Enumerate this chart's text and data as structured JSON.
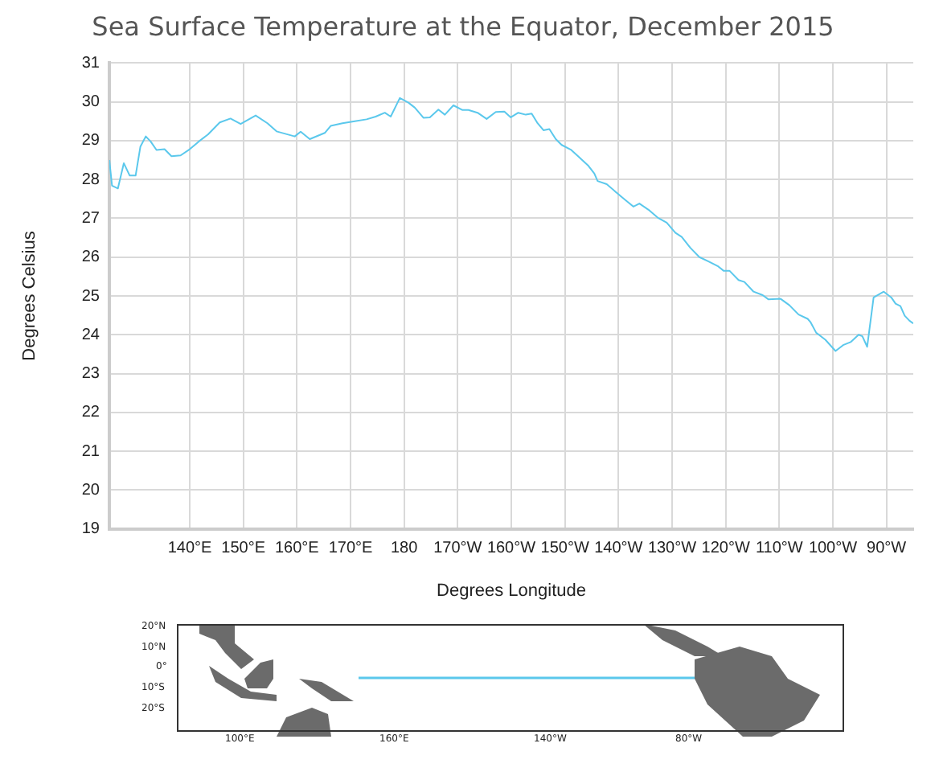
{
  "chart_data": {
    "type": "line",
    "title": "Sea Surface Temperature at the Equator, December 2015",
    "xlabel": "Degrees Longitude",
    "ylabel": "Degrees Celsius",
    "series": [
      {
        "color": "#5bc8ec",
        "x": [
          125,
          125.5,
          126.6,
          127.7,
          128.8,
          129.9,
          130.8,
          131.8,
          132.7,
          133.8,
          135.3,
          136.6,
          138.3,
          140,
          141.7,
          143.4,
          145.6,
          147.6,
          149.5,
          152.3,
          154.5,
          156.2,
          159.6,
          160.7,
          162.4,
          165.2,
          166.3,
          168.5,
          170.8,
          173,
          174.7,
          176.4,
          177.5,
          179.2,
          180.8,
          182,
          183.6,
          184.8,
          186.4,
          187.6,
          189.2,
          190.9,
          192,
          193.7,
          195.4,
          197.1,
          198.7,
          199.9,
          201.3,
          202.7,
          203.8,
          204.9,
          206,
          207.1,
          208.3,
          209.4,
          211.1,
          212.7,
          214.4,
          215.5,
          216.1,
          217.8,
          219.4,
          221.1,
          222.8,
          223.9,
          225.6,
          227.3,
          229,
          230.6,
          231.8,
          233.4,
          235.1,
          236.8,
          238.5,
          239.6,
          240.7,
          242.4,
          243.5,
          245.2,
          246.9,
          248,
          250.2,
          251.9,
          253.6,
          255.3,
          255.8,
          256.9,
          258.6,
          260.5,
          262,
          263.3,
          264.8,
          265.5,
          266.4,
          267.6,
          269.5,
          270.9,
          271.7,
          272.6,
          273.4,
          274.3,
          275
        ],
        "values": [
          28.5,
          27.84,
          27.77,
          28.42,
          28.1,
          28.1,
          28.85,
          29.11,
          28.98,
          28.76,
          28.78,
          28.6,
          28.62,
          28.78,
          28.98,
          29.16,
          29.47,
          29.57,
          29.43,
          29.65,
          29.45,
          29.24,
          29.11,
          29.23,
          29.04,
          29.2,
          29.38,
          29.45,
          29.5,
          29.55,
          29.62,
          29.72,
          29.62,
          30.1,
          29.98,
          29.85,
          29.59,
          29.6,
          29.8,
          29.67,
          29.91,
          29.79,
          29.79,
          29.72,
          29.56,
          29.74,
          29.75,
          29.6,
          29.72,
          29.67,
          29.7,
          29.45,
          29.27,
          29.3,
          29.04,
          28.89,
          28.77,
          28.57,
          28.35,
          28.15,
          27.96,
          27.88,
          27.69,
          27.49,
          27.3,
          27.38,
          27.22,
          27.02,
          26.89,
          26.63,
          26.52,
          26.24,
          26.0,
          25.89,
          25.77,
          25.65,
          25.65,
          25.41,
          25.36,
          25.11,
          25.02,
          24.91,
          24.93,
          24.76,
          24.52,
          24.41,
          24.33,
          24.05,
          23.87,
          23.58,
          23.74,
          23.81,
          24.0,
          23.96,
          23.69,
          24.96,
          25.11,
          24.96,
          24.8,
          24.74,
          24.49,
          24.36,
          24.29
        ]
      }
    ],
    "xlim": [
      125,
      275
    ],
    "xticks": [
      {
        "value": 140,
        "label": "140°E"
      },
      {
        "value": 150,
        "label": "150°E"
      },
      {
        "value": 160,
        "label": "160°E"
      },
      {
        "value": 170,
        "label": "170°E"
      },
      {
        "value": 180,
        "label": "180"
      },
      {
        "value": 190,
        "label": "170°W"
      },
      {
        "value": 200,
        "label": "160°W"
      },
      {
        "value": 210,
        "label": "150°W"
      },
      {
        "value": 220,
        "label": "140°W"
      },
      {
        "value": 230,
        "label": "130°W"
      },
      {
        "value": 240,
        "label": "120°W"
      },
      {
        "value": 250,
        "label": "110°W"
      },
      {
        "value": 260,
        "label": "100°W"
      },
      {
        "value": 270,
        "label": "90°W"
      }
    ],
    "ylim": [
      19,
      31
    ],
    "yticks": [
      19,
      20,
      21,
      22,
      23,
      24,
      25,
      26,
      27,
      28,
      29,
      30,
      31
    ],
    "grid": true,
    "legend": false,
    "marker": "none",
    "line_style": "solid",
    "annotations": [
      "20°N",
      "10°N",
      "0°",
      "10°S",
      "20°S",
      "100°E",
      "160°E",
      "140°W",
      "80°W"
    ]
  }
}
